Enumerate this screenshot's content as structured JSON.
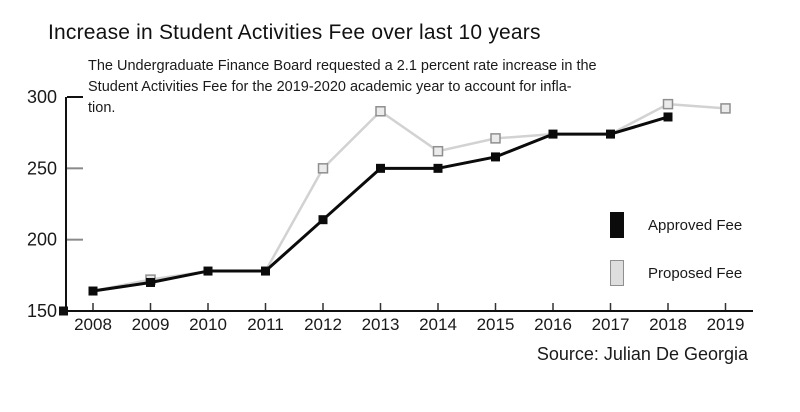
{
  "title": "Increase in Student Activities Fee over last 10 years",
  "subtitle_lines": [
    "The Undergraduate Finance Board requested a 2.1 percent rate increase in the",
    "Student Activities Fee for the 2019-2020 academic year to account for infla-",
    "tion."
  ],
  "source": "Source: Julian De Georgia",
  "legend": {
    "items": [
      {
        "label": "Approved Fee",
        "swatch_color": "#0b0b0b",
        "swatch_border": "#0b0b0b"
      },
      {
        "label": "Proposed Fee",
        "swatch_color": "#dedede",
        "swatch_border": "#8f8f8f"
      }
    ]
  },
  "chart_data": {
    "type": "line",
    "title": "Increase in Student Activities Fee over last 10 years",
    "xlabel": "",
    "ylabel": "",
    "categories": [
      "2008",
      "2009",
      "2010",
      "2011",
      "2012",
      "2013",
      "2014",
      "2015",
      "2016",
      "2017",
      "2018",
      "2019"
    ],
    "series": [
      {
        "name": "Approved Fee",
        "color": "#0b0b0b",
        "marker": "filled-square",
        "values": [
          164,
          170,
          178,
          178,
          214,
          250,
          250,
          258,
          274,
          274,
          286,
          null
        ]
      },
      {
        "name": "Proposed Fee",
        "color": "#d2d2d2",
        "marker": "open-square",
        "marker_fill": "#ebebeb",
        "marker_border": "#8f8f8f",
        "values": [
          null,
          172,
          null,
          null,
          250,
          290,
          262,
          271,
          null,
          null,
          295,
          292
        ],
        "line_values": [
          164,
          172,
          178,
          178,
          250,
          290,
          262,
          271,
          274,
          274,
          295,
          292
        ]
      }
    ],
    "ylim": [
      150,
      300
    ],
    "yticks": [
      150,
      200,
      250,
      300
    ],
    "grid": false,
    "legend_position": "right-middle",
    "axis_color": "#111111",
    "minor_tick_color": "#8a8a8a",
    "label_color": "#1a1a1a"
  }
}
